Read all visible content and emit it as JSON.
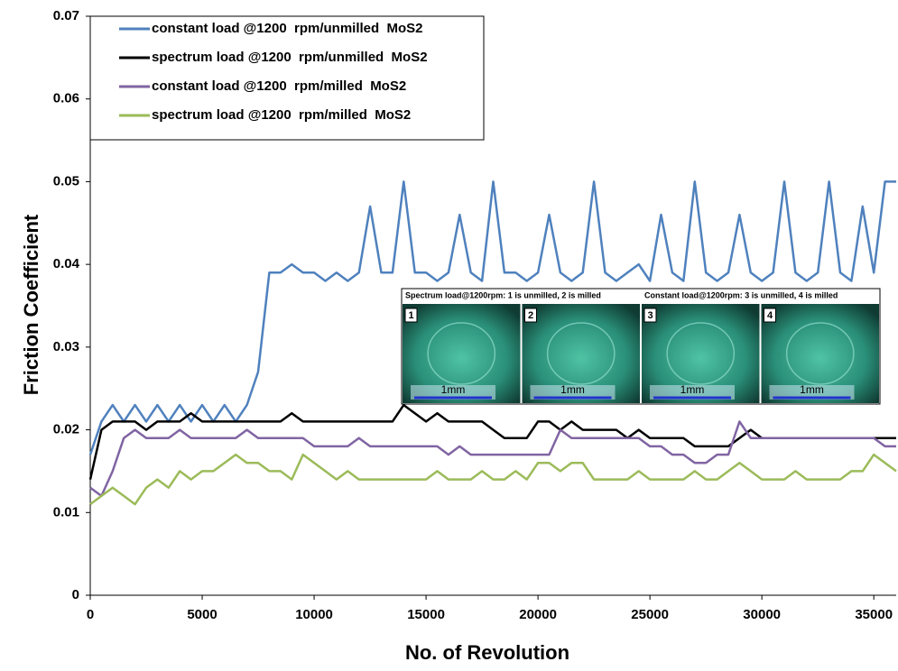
{
  "chart_data": {
    "type": "line",
    "xlabel": "No. of Revolution",
    "ylabel": "Friction Coefficient",
    "x": [
      0,
      500,
      1000,
      1500,
      2000,
      2500,
      3000,
      3500,
      4000,
      4500,
      5000,
      5500,
      6000,
      6500,
      7000,
      7500,
      8000,
      8500,
      9000,
      9500,
      10000,
      10500,
      11000,
      11500,
      12000,
      12500,
      13000,
      13500,
      14000,
      14500,
      15000,
      15500,
      16000,
      16500,
      17000,
      17500,
      18000,
      18500,
      19000,
      19500,
      20000,
      20500,
      21000,
      21500,
      22000,
      22500,
      23000,
      23500,
      24000,
      24500,
      25000,
      25500,
      26000,
      26500,
      27000,
      27500,
      28000,
      28500,
      29000,
      29500,
      30000,
      30500,
      31000,
      31500,
      32000,
      32500,
      33000,
      33500,
      34000,
      34500,
      35000,
      35500,
      36000
    ],
    "series": [
      {
        "name": "constant load @1200  rpm/unmilled  MoS2",
        "color": "#4f81bd",
        "values": [
          0.017,
          0.021,
          0.023,
          0.021,
          0.023,
          0.021,
          0.023,
          0.021,
          0.023,
          0.021,
          0.023,
          0.021,
          0.023,
          0.021,
          0.023,
          0.027,
          0.039,
          0.039,
          0.04,
          0.039,
          0.039,
          0.038,
          0.039,
          0.038,
          0.039,
          0.047,
          0.039,
          0.039,
          0.05,
          0.039,
          0.039,
          0.038,
          0.039,
          0.046,
          0.039,
          0.038,
          0.05,
          0.039,
          0.039,
          0.038,
          0.039,
          0.046,
          0.039,
          0.038,
          0.039,
          0.05,
          0.039,
          0.038,
          0.039,
          0.04,
          0.038,
          0.046,
          0.039,
          0.038,
          0.05,
          0.039,
          0.038,
          0.039,
          0.046,
          0.039,
          0.038,
          0.039,
          0.05,
          0.039,
          0.038,
          0.039,
          0.05,
          0.039,
          0.038,
          0.047,
          0.039,
          0.05,
          0.05
        ]
      },
      {
        "name": "spectrum load @1200  rpm/unmilled  MoS2",
        "color": "#000000",
        "values": [
          0.014,
          0.02,
          0.021,
          0.021,
          0.021,
          0.02,
          0.021,
          0.021,
          0.021,
          0.022,
          0.021,
          0.021,
          0.021,
          0.021,
          0.021,
          0.021,
          0.021,
          0.021,
          0.022,
          0.021,
          0.021,
          0.021,
          0.021,
          0.021,
          0.021,
          0.021,
          0.021,
          0.021,
          0.023,
          0.022,
          0.021,
          0.022,
          0.021,
          0.021,
          0.021,
          0.021,
          0.02,
          0.019,
          0.019,
          0.019,
          0.021,
          0.021,
          0.02,
          0.021,
          0.02,
          0.02,
          0.02,
          0.02,
          0.019,
          0.02,
          0.019,
          0.019,
          0.019,
          0.019,
          0.018,
          0.018,
          0.018,
          0.018,
          0.019,
          0.02,
          0.019,
          0.019,
          0.019,
          0.019,
          0.019,
          0.019,
          0.019,
          0.019,
          0.019,
          0.019,
          0.019,
          0.019,
          0.019
        ]
      },
      {
        "name": "constant load @1200  rpm/milled  MoS2",
        "color": "#8064a2",
        "values": [
          0.013,
          0.012,
          0.015,
          0.019,
          0.02,
          0.019,
          0.019,
          0.019,
          0.02,
          0.019,
          0.019,
          0.019,
          0.019,
          0.019,
          0.02,
          0.019,
          0.019,
          0.019,
          0.019,
          0.019,
          0.018,
          0.018,
          0.018,
          0.018,
          0.019,
          0.018,
          0.018,
          0.018,
          0.018,
          0.018,
          0.018,
          0.018,
          0.017,
          0.018,
          0.017,
          0.017,
          0.017,
          0.017,
          0.017,
          0.017,
          0.017,
          0.017,
          0.02,
          0.019,
          0.019,
          0.019,
          0.019,
          0.019,
          0.019,
          0.019,
          0.018,
          0.018,
          0.017,
          0.017,
          0.016,
          0.016,
          0.017,
          0.017,
          0.021,
          0.019,
          0.019,
          0.019,
          0.019,
          0.019,
          0.019,
          0.019,
          0.019,
          0.019,
          0.019,
          0.019,
          0.019,
          0.018,
          0.018
        ]
      },
      {
        "name": "spectrum load @1200  rpm/milled  MoS2",
        "color": "#9bbb59",
        "values": [
          0.011,
          0.012,
          0.013,
          0.012,
          0.011,
          0.013,
          0.014,
          0.013,
          0.015,
          0.014,
          0.015,
          0.015,
          0.016,
          0.017,
          0.016,
          0.016,
          0.015,
          0.015,
          0.014,
          0.017,
          0.016,
          0.015,
          0.014,
          0.015,
          0.014,
          0.014,
          0.014,
          0.014,
          0.014,
          0.014,
          0.014,
          0.015,
          0.014,
          0.014,
          0.014,
          0.015,
          0.014,
          0.014,
          0.015,
          0.014,
          0.016,
          0.016,
          0.015,
          0.016,
          0.016,
          0.014,
          0.014,
          0.014,
          0.014,
          0.015,
          0.014,
          0.014,
          0.014,
          0.014,
          0.015,
          0.014,
          0.014,
          0.015,
          0.016,
          0.015,
          0.014,
          0.014,
          0.014,
          0.015,
          0.014,
          0.014,
          0.014,
          0.014,
          0.015,
          0.015,
          0.017,
          0.016,
          0.015
        ]
      }
    ],
    "xlim": [
      0,
      36000
    ],
    "xticks": [
      0,
      5000,
      10000,
      15000,
      20000,
      25000,
      30000,
      35000
    ],
    "ylim": [
      0,
      0.07
    ],
    "yticks": [
      0,
      0.01,
      0.02,
      0.03,
      0.04,
      0.05,
      0.06,
      0.07
    ],
    "grid": false,
    "legend": "upper left",
    "inset": {
      "captions": [
        "Spectrum load@1200rpm: 1 is unmilled, 2 is milled",
        "Constant load@1200rpm: 3 is unmilled, 4 is milled"
      ],
      "panels": [
        {
          "label": "1",
          "scale": "1mm"
        },
        {
          "label": "2",
          "scale": "1mm"
        },
        {
          "label": "3",
          "scale": "1mm"
        },
        {
          "label": "4",
          "scale": "1mm"
        }
      ]
    }
  }
}
